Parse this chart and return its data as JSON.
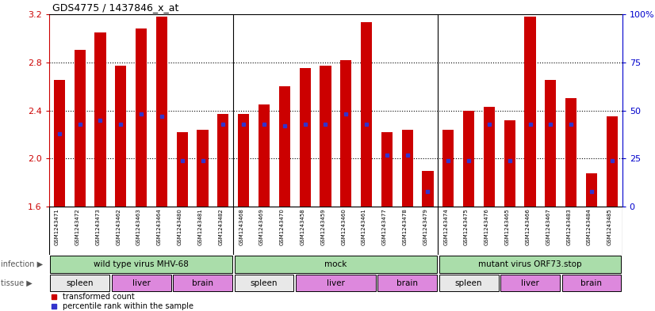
{
  "title": "GDS4775 / 1437846_x_at",
  "ylim_left": [
    1.6,
    3.2
  ],
  "ylim_right": [
    0,
    100
  ],
  "yticks_left": [
    1.6,
    2.0,
    2.4,
    2.8,
    3.2
  ],
  "yticks_right": [
    0,
    25,
    50,
    75,
    100
  ],
  "samples": [
    "GSM1243471",
    "GSM1243472",
    "GSM1243473",
    "GSM1243462",
    "GSM1243463",
    "GSM1243464",
    "GSM1243480",
    "GSM1243481",
    "GSM1243482",
    "GSM1243468",
    "GSM1243469",
    "GSM1243470",
    "GSM1243458",
    "GSM1243459",
    "GSM1243460",
    "GSM1243461",
    "GSM1243477",
    "GSM1243478",
    "GSM1243479",
    "GSM1243474",
    "GSM1243475",
    "GSM1243476",
    "GSM1243465",
    "GSM1243466",
    "GSM1243467",
    "GSM1243483",
    "GSM1243484",
    "GSM1243485"
  ],
  "bar_values": [
    2.65,
    2.9,
    3.05,
    2.77,
    3.08,
    3.18,
    2.22,
    2.24,
    2.37,
    2.37,
    2.45,
    2.6,
    2.75,
    2.77,
    2.82,
    3.13,
    2.22,
    2.24,
    1.9,
    2.24,
    2.4,
    2.43,
    2.32,
    3.18,
    2.65,
    2.5,
    1.88,
    2.35
  ],
  "percentile_values": [
    38,
    43,
    45,
    43,
    48,
    47,
    24,
    24,
    43,
    43,
    43,
    42,
    43,
    43,
    48,
    43,
    27,
    27,
    8,
    24,
    24,
    43,
    24,
    43,
    43,
    43,
    8,
    24
  ],
  "bar_color": "#cc0000",
  "percentile_color": "#3333cc",
  "base_value": 1.6,
  "yrange": 1.6,
  "infection_groups": [
    {
      "label": "wild type virus MHV-68",
      "start": 0,
      "end": 9
    },
    {
      "label": "mock",
      "start": 9,
      "end": 19
    },
    {
      "label": "mutant virus ORF73.stop",
      "start": 19,
      "end": 28
    }
  ],
  "tissue_groups": [
    {
      "label": "spleen",
      "start": 0,
      "end": 3,
      "color": "#e8e8e8"
    },
    {
      "label": "liver",
      "start": 3,
      "end": 6,
      "color": "#dd88dd"
    },
    {
      "label": "brain",
      "start": 6,
      "end": 9,
      "color": "#dd88dd"
    },
    {
      "label": "spleen",
      "start": 9,
      "end": 12,
      "color": "#e8e8e8"
    },
    {
      "label": "liver",
      "start": 12,
      "end": 16,
      "color": "#dd88dd"
    },
    {
      "label": "brain",
      "start": 16,
      "end": 19,
      "color": "#dd88dd"
    },
    {
      "label": "spleen",
      "start": 19,
      "end": 22,
      "color": "#e8e8e8"
    },
    {
      "label": "liver",
      "start": 22,
      "end": 25,
      "color": "#dd88dd"
    },
    {
      "label": "brain",
      "start": 25,
      "end": 28,
      "color": "#dd88dd"
    }
  ],
  "infection_color": "#aaddaa",
  "label_bg_color": "#d0d0d0",
  "bg_color": "#ffffff"
}
